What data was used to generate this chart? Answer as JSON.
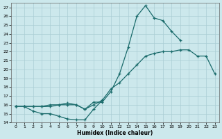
{
  "xlabel": "Humidex (Indice chaleur)",
  "bg_color": "#cce8ec",
  "grid_color": "#aacdd4",
  "line_color": "#1a6b6b",
  "xlim": [
    -0.5,
    23.5
  ],
  "ylim": [
    14,
    27.5
  ],
  "xticks": [
    0,
    1,
    2,
    3,
    4,
    5,
    6,
    7,
    8,
    9,
    10,
    11,
    12,
    13,
    14,
    15,
    16,
    17,
    18,
    19,
    20,
    21,
    22,
    23
  ],
  "yticks": [
    14,
    15,
    16,
    17,
    18,
    19,
    20,
    21,
    22,
    23,
    24,
    25,
    26,
    27
  ],
  "curve1_x": [
    0,
    1,
    2,
    3,
    4,
    5,
    6,
    7,
    8,
    9,
    10
  ],
  "curve1_y": [
    15.8,
    15.8,
    15.3,
    15.0,
    15.0,
    14.7,
    14.4,
    14.3,
    14.3,
    15.5,
    16.5
  ],
  "curve2_x": [
    0,
    1,
    2,
    3,
    4,
    5,
    6,
    7,
    8,
    9,
    10,
    11,
    12,
    13,
    14,
    15,
    16,
    17,
    18,
    19,
    20,
    21,
    22,
    23
  ],
  "curve2_y": [
    15.8,
    15.8,
    15.8,
    15.8,
    15.8,
    16.0,
    16.0,
    16.0,
    15.5,
    16.0,
    16.5,
    17.8,
    18.5,
    19.5,
    20.5,
    21.5,
    21.8,
    22.0,
    22.0,
    22.2,
    22.2,
    21.5,
    21.5,
    19.5
  ],
  "curve3_x": [
    0,
    1,
    2,
    3,
    4,
    5,
    6,
    7,
    8,
    9,
    10,
    11,
    12,
    13,
    14,
    15,
    16,
    17,
    18,
    19,
    20,
    21,
    22,
    23
  ],
  "curve3_y": [
    15.8,
    15.8,
    15.8,
    15.8,
    16.0,
    16.0,
    16.2,
    16.0,
    15.5,
    16.3,
    16.3,
    17.5,
    19.5,
    22.5,
    26.0,
    27.2,
    25.8,
    25.5,
    24.3,
    23.3,
    null,
    null,
    null,
    null
  ]
}
